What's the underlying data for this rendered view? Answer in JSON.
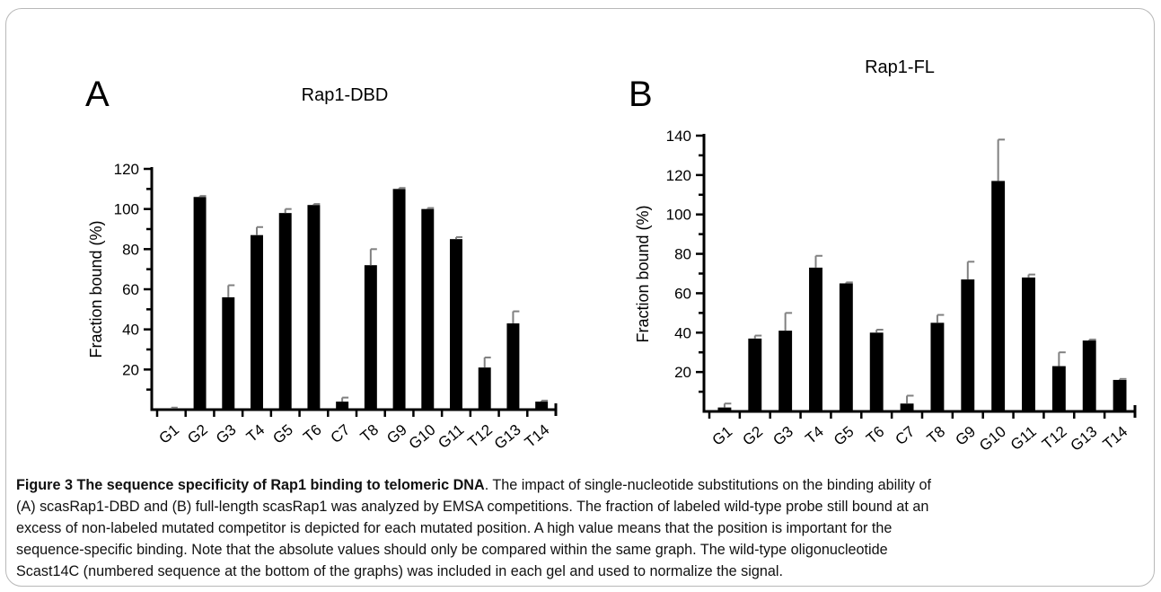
{
  "chart_data": [
    {
      "type": "bar",
      "panel_label": "A",
      "title": "Rap1-DBD",
      "xlabel": "",
      "ylabel": "Fraction bound (%)",
      "ylim": [
        0,
        120
      ],
      "yticks": [
        20,
        40,
        60,
        80,
        100,
        120
      ],
      "categories": [
        "G1",
        "G2",
        "G3",
        "T4",
        "G5",
        "T6",
        "C7",
        "T8",
        "G9",
        "G10",
        "G11",
        "T12",
        "G13",
        "T14"
      ],
      "values": [
        0.5,
        106,
        56,
        87,
        98,
        102,
        4,
        72,
        110,
        100,
        85,
        21,
        43,
        4
      ],
      "errors": [
        0.5,
        0.5,
        6,
        4,
        2,
        0.5,
        2,
        8,
        0.5,
        0.5,
        1,
        5,
        6,
        0.5
      ],
      "grid": false,
      "bar_color": "#000000",
      "error_color": "#808080"
    },
    {
      "type": "bar",
      "panel_label": "B",
      "title": "Rap1-FL",
      "xlabel": "",
      "ylabel": "Fraction bound (%)",
      "ylim": [
        0,
        140
      ],
      "yticks": [
        20,
        40,
        60,
        80,
        100,
        120,
        140
      ],
      "categories": [
        "G1",
        "G2",
        "G3",
        "T4",
        "G5",
        "T6",
        "C7",
        "T8",
        "G9",
        "G10",
        "G11",
        "T12",
        "G13",
        "T14"
      ],
      "values": [
        2,
        37,
        41,
        73,
        65,
        40,
        4,
        45,
        67,
        117,
        68,
        23,
        36,
        16
      ],
      "errors": [
        2,
        1.5,
        9,
        6,
        0.5,
        1.5,
        4,
        4,
        9,
        21,
        1.5,
        7,
        0.5,
        0.5
      ],
      "grid": false,
      "bar_color": "#000000",
      "error_color": "#808080"
    }
  ],
  "caption": {
    "label": "Figure 3 The sequence specificity of Rap1 binding to telomeric DNA",
    "lines": [
      ". The impact of single-nucleotide substitutions on the binding ability of",
      "(A) scasRap1-DBD and (B) full-length scasRap1 was analyzed by EMSA competitions. The fraction of labeled wild-type probe still bound at an",
      "excess of non-labeled mutated competitor is depicted for each mutated position. A high value means that the position is important for the",
      "sequence-specific binding. Note that the absolute values should only be compared within the same graph. The wild-type oligonucleotide",
      "Scast14C (numbered sequence at the bottom of the graphs) was included in each gel and used to normalize the signal."
    ]
  }
}
